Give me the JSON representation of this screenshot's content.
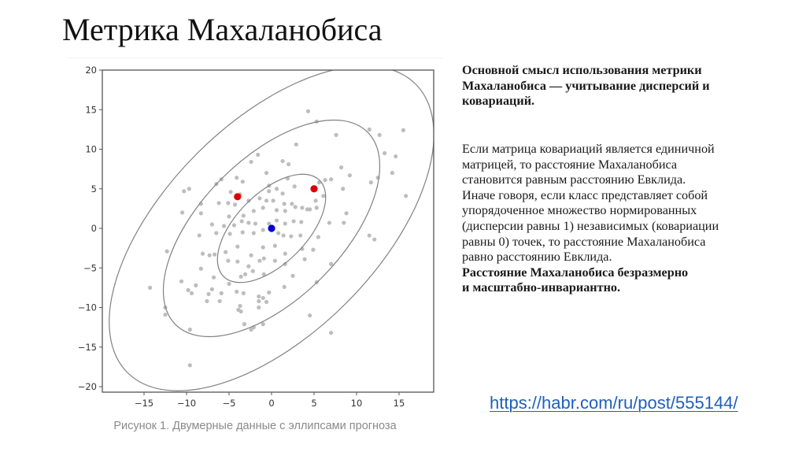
{
  "slide": {
    "title": "Метрика Махаланобиса"
  },
  "figure": {
    "caption": "Рисунок 1. Двумерные данные с эллипсами прогноза"
  },
  "text": {
    "block1_bold_lines": [
      "Основной смысл использования метрики",
      "Махаланобиса — учитывание дисперсий и",
      "ковариаций."
    ],
    "block2_lines": [
      "Если матрица ковариаций является единичной",
      "матрицей, то расстояние Махаланобиса",
      "становится равным расстоянию Евклида.",
      "Иначе говоря, если класс представляет собой",
      "упорядоченное множество нормированных",
      "(дисперсии равны 1) независимых (ковариации",
      "равны 0) точек, то расстояние Махаланобиса",
      "равно расстоянию Евклида."
    ],
    "block2_bold_lines": [
      "Расстояние Махаланобиса безразмерно",
      "и масштабно-инвариантно."
    ]
  },
  "link": {
    "text": "https://habr.com/ru/post/555144/"
  },
  "colors": {
    "points": "#bdbdbd",
    "ellipse": "#808080",
    "axis": "#555555",
    "center": "#0000dd",
    "highlight": "#e00000",
    "link": "#1f5fbf",
    "caption": "#8a8a8a"
  },
  "chart_data": {
    "type": "scatter",
    "title": "",
    "caption": "Рисунок 1. Двумерные данные с эллипсами прогноза",
    "xlabel": "",
    "ylabel": "",
    "xlim": [
      -19,
      19
    ],
    "ylim": [
      -21,
      20
    ],
    "xticks": [
      -15,
      -10,
      -5,
      0,
      5,
      10,
      15
    ],
    "yticks": [
      20,
      15,
      10,
      5,
      0,
      -5,
      -10,
      -15,
      -20
    ],
    "grid": false,
    "legend": null,
    "series": [
      {
        "name": "data",
        "color": "#bdbdbd",
        "points": [
          [
            4.3,
            14.8
          ],
          [
            5.3,
            13.5
          ],
          [
            11.5,
            12.5
          ],
          [
            12.7,
            11.8
          ],
          [
            15.5,
            12.4
          ],
          [
            7.6,
            11.8
          ],
          [
            2.9,
            10.6
          ],
          [
            -1.6,
            9.3
          ],
          [
            -2.4,
            8.4
          ],
          [
            1.3,
            8.5
          ],
          [
            2.0,
            8.1
          ],
          [
            13.3,
            9.5
          ],
          [
            14.6,
            9.1
          ],
          [
            8.2,
            7.7
          ],
          [
            9.2,
            6.7
          ],
          [
            14.2,
            7.0
          ],
          [
            -0.6,
            7.0
          ],
          [
            1.9,
            6.3
          ],
          [
            -4.1,
            6.4
          ],
          [
            -5.9,
            6.2
          ],
          [
            -3.4,
            5.9
          ],
          [
            6.3,
            6.1
          ],
          [
            5.6,
            5.8
          ],
          [
            7.0,
            6.2
          ],
          [
            12.5,
            6.4
          ],
          [
            11.7,
            5.8
          ],
          [
            -10.3,
            4.7
          ],
          [
            -9.7,
            5.0
          ],
          [
            -6.5,
            5.6
          ],
          [
            -4.8,
            4.6
          ],
          [
            -3.7,
            4.3
          ],
          [
            1.3,
            4.4
          ],
          [
            -0.3,
            4.7
          ],
          [
            -0.3,
            5.4
          ],
          [
            0.6,
            5.0
          ],
          [
            2.7,
            5.3
          ],
          [
            6.1,
            4.1
          ],
          [
            8.4,
            5.0
          ],
          [
            15.8,
            4.1
          ],
          [
            -8.3,
            3.1
          ],
          [
            -6.2,
            3.2
          ],
          [
            -5.1,
            3.2
          ],
          [
            -4.3,
            3.0
          ],
          [
            -2.7,
            3.5
          ],
          [
            -1.4,
            3.8
          ],
          [
            -0.6,
            3.5
          ],
          [
            0.2,
            3.5
          ],
          [
            1.5,
            3.1
          ],
          [
            2.4,
            3.1
          ],
          [
            3.6,
            2.6
          ],
          [
            4.5,
            2.4
          ],
          [
            5.2,
            3.5
          ],
          [
            -10.5,
            2.0
          ],
          [
            -8.3,
            1.9
          ],
          [
            -5.0,
            1.5
          ],
          [
            -3.3,
            1.6
          ],
          [
            -2.1,
            2.2
          ],
          [
            -1.0,
            2.6
          ],
          [
            0.6,
            2.3
          ],
          [
            1.6,
            2.2
          ],
          [
            2.8,
            2.7
          ],
          [
            4.2,
            2.4
          ],
          [
            5.3,
            2.6
          ],
          [
            8.8,
            1.9
          ],
          [
            -7.0,
            0.5
          ],
          [
            -5.6,
            0.3
          ],
          [
            -4.4,
            0.4
          ],
          [
            -3.5,
            0.9
          ],
          [
            -2.7,
            0.7
          ],
          [
            -1.9,
            0.6
          ],
          [
            -0.3,
            0.6
          ],
          [
            0.6,
            1.0
          ],
          [
            1.6,
            0.6
          ],
          [
            2.6,
            0.9
          ],
          [
            3.5,
            0.8
          ],
          [
            6.8,
            0.7
          ],
          [
            8.5,
            0.7
          ],
          [
            -8.5,
            -0.9
          ],
          [
            -6.5,
            -0.6
          ],
          [
            -4.9,
            -0.7
          ],
          [
            -3.4,
            -0.5
          ],
          [
            -2.1,
            -0.6
          ],
          [
            -1.0,
            -0.2
          ],
          [
            0.8,
            -0.6
          ],
          [
            1.4,
            -0.9
          ],
          [
            2.3,
            -1.0
          ],
          [
            3.4,
            -0.9
          ],
          [
            5.5,
            -1.1
          ],
          [
            11.5,
            -0.9
          ],
          [
            12.1,
            -1.4
          ],
          [
            -12.3,
            -2.9
          ],
          [
            -8.1,
            -3.2
          ],
          [
            -6.7,
            -3.3
          ],
          [
            -5.4,
            -3.0
          ],
          [
            -4.0,
            -2.3
          ],
          [
            -2.4,
            -3.4
          ],
          [
            -1.0,
            -2.4
          ],
          [
            0.4,
            -2.2
          ],
          [
            1.6,
            -3.2
          ],
          [
            3.6,
            -2.6
          ],
          [
            4.9,
            -2.7
          ],
          [
            -7.3,
            -3.4
          ],
          [
            -5.1,
            -4.1
          ],
          [
            -4.0,
            -4.2
          ],
          [
            -2.7,
            -4.8
          ],
          [
            -1.4,
            -4.1
          ],
          [
            -0.9,
            -3.8
          ],
          [
            0.4,
            -4.1
          ],
          [
            1.6,
            -4.5
          ],
          [
            3.9,
            -3.9
          ],
          [
            7.0,
            -4.5
          ],
          [
            -8.3,
            -5.1
          ],
          [
            -6.8,
            -6.2
          ],
          [
            -5.0,
            -7.0
          ],
          [
            -3.6,
            -6.1
          ],
          [
            -3.1,
            -5.8
          ],
          [
            -2.2,
            -5.4
          ],
          [
            -0.9,
            -5.8
          ],
          [
            2.5,
            -6.0
          ],
          [
            5.3,
            -6.8
          ],
          [
            -10.6,
            -6.7
          ],
          [
            -8.9,
            -7.2
          ],
          [
            -7.0,
            -7.7
          ],
          [
            -5.9,
            -8.2
          ],
          [
            -4.1,
            -8.0
          ],
          [
            -3.3,
            -8.2
          ],
          [
            -1.5,
            -8.6
          ],
          [
            -0.3,
            -8.1
          ],
          [
            1.5,
            -7.4
          ],
          [
            -14.3,
            -7.5
          ],
          [
            -9.8,
            -7.8
          ],
          [
            -9.4,
            -8.2
          ],
          [
            -7.4,
            -8.3
          ],
          [
            -7.6,
            -9.2
          ],
          [
            -6.1,
            -9.2
          ],
          [
            -3.7,
            -9.8
          ],
          [
            -1.5,
            -9.2
          ],
          [
            -1.0,
            -8.8
          ],
          [
            -0.6,
            -9.3
          ],
          [
            -12.5,
            -10.0
          ],
          [
            -12.5,
            -10.9
          ],
          [
            -3.9,
            -10.3
          ],
          [
            -3.6,
            -10.5
          ],
          [
            -1.5,
            -10.0
          ],
          [
            4.5,
            -11.0
          ],
          [
            -9.6,
            -12.8
          ],
          [
            -3.2,
            -12.1
          ],
          [
            -2.4,
            -12.8
          ],
          [
            -2.1,
            -12.5
          ],
          [
            -1.0,
            -12.1
          ],
          [
            7.0,
            -13.2
          ],
          [
            -9.6,
            -17.3
          ]
        ]
      },
      {
        "name": "center",
        "color": "#0000dd",
        "points": [
          [
            0,
            0
          ]
        ]
      },
      {
        "name": "highlighted",
        "color": "#e00000",
        "points": [
          [
            -4,
            4
          ],
          [
            5,
            5
          ]
        ]
      }
    ],
    "ellipses": [
      {
        "name": "1-sigma",
        "cx": 0,
        "cy": 0,
        "rx_major": 8.3,
        "rx_minor": 4.3,
        "angle_deg": 45
      },
      {
        "name": "2-sigma",
        "cx": 0,
        "cy": 0,
        "rx_major": 16.6,
        "rx_minor": 8.6,
        "angle_deg": 45
      },
      {
        "name": "3-sigma",
        "cx": 0,
        "cy": 0,
        "rx_major": 24.9,
        "rx_minor": 12.9,
        "angle_deg": 45
      }
    ]
  }
}
